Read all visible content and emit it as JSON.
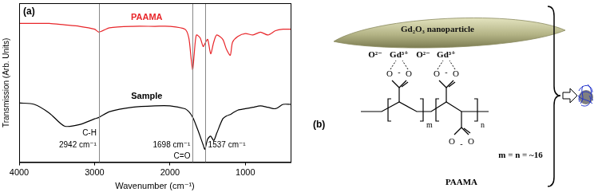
{
  "chart_data": {
    "type": "line",
    "x_label": "Wavenumber (cm⁻¹)",
    "y_label": "Transmission (Arb. Units)",
    "xlim": [
      4000,
      400
    ],
    "xticks": [
      4000,
      3000,
      2000,
      1000
    ],
    "ylim": [
      0,
      11
    ],
    "tick_labels": "x",
    "grid": false,
    "x": [
      4000,
      3800,
      3600,
      3400,
      3200,
      3000,
      2942,
      2800,
      2500,
      2200,
      2000,
      1800,
      1750,
      1720,
      1698,
      1680,
      1650,
      1600,
      1560,
      1537,
      1500,
      1460,
      1420,
      1380,
      1300,
      1250,
      1200,
      1170,
      1100,
      1000,
      900,
      800,
      700,
      600,
      500,
      400
    ],
    "series": [
      {
        "name": "PAAMA",
        "color": "#e8262a",
        "values": [
          9.6,
          9.6,
          9.6,
          9.5,
          9.4,
          9.2,
          9.0,
          9.3,
          9.4,
          9.4,
          9.4,
          9.2,
          8.6,
          7.2,
          6.4,
          7.4,
          8.8,
          8.6,
          8.0,
          8.2,
          8.5,
          7.5,
          8.3,
          8.8,
          8.5,
          7.8,
          7.4,
          8.3,
          8.7,
          8.9,
          8.8,
          9.0,
          8.8,
          9.1,
          9.2,
          9.2
        ]
      },
      {
        "name": "Sample",
        "color": "#000000",
        "values": [
          4.1,
          4.0,
          3.4,
          2.5,
          2.6,
          3.0,
          3.1,
          3.5,
          3.8,
          3.9,
          3.9,
          3.7,
          3.5,
          3.3,
          3.1,
          2.9,
          2.5,
          1.8,
          1.2,
          0.9,
          1.6,
          1.8,
          1.5,
          2.0,
          3.0,
          3.2,
          3.3,
          3.4,
          3.6,
          3.7,
          3.8,
          3.9,
          3.8,
          3.7,
          4.0,
          4.0
        ]
      }
    ],
    "vlines": [
      2942,
      1698,
      1537
    ],
    "annotations": [
      {
        "text": "(a)"
      },
      {
        "text": "C-H",
        "x": 2942
      },
      {
        "text": "2942 cm⁻¹",
        "x": 2942
      },
      {
        "text": "1698 cm⁻¹",
        "x": 1698
      },
      {
        "text": "C=O",
        "x": 1698
      },
      {
        "text": "1537 cm⁻¹",
        "x": 1537
      }
    ]
  },
  "diagram": {
    "label": "(b)",
    "particle": "Gd₂O₃ nanoparticle",
    "surface_ions": [
      "O²⁻",
      "Gd³⁺",
      "O²⁻",
      "Gd³⁺"
    ],
    "oxygen": "O",
    "charge": "-",
    "repeat_subscripts": [
      "m",
      "n"
    ],
    "composition": "m = n = ~16",
    "polymer": "PAAMA"
  }
}
